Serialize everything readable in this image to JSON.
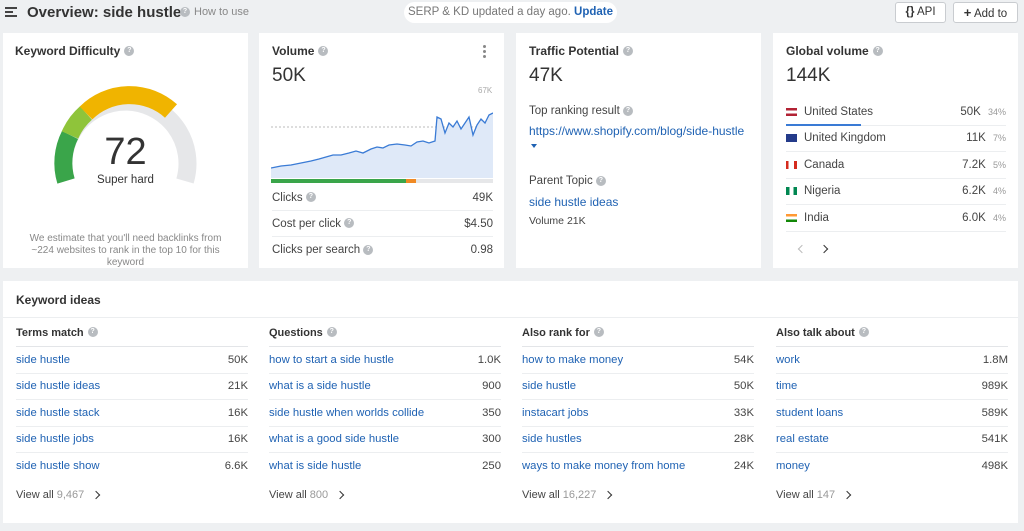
{
  "header": {
    "title": "Overview: side hustle",
    "how_to_use": "How to use",
    "status_text": "SERP & KD updated a day ago.",
    "update_label": "Update",
    "api_label": "API",
    "add_to_label": "Add to"
  },
  "kd": {
    "title": "Keyword Difficulty",
    "value": "72",
    "label": "Super hard",
    "note": "We estimate that you'll need backlinks from ~224 websites to rank in the top 10 for this keyword"
  },
  "volume": {
    "title": "Volume",
    "value": "50K",
    "chart_max_label": "67K",
    "rows": [
      {
        "label": "Clicks",
        "value": "49K"
      },
      {
        "label": "Cost per click",
        "value": "$4.50"
      },
      {
        "label": "Clicks per search",
        "value": "0.98"
      }
    ]
  },
  "traffic": {
    "title": "Traffic Potential",
    "value": "47K",
    "top_ranking_label": "Top ranking result",
    "top_ranking_url": "https://www.shopify.com/blog/side-hustle",
    "parent_topic_label": "Parent Topic",
    "parent_topic": "side hustle ideas",
    "parent_volume": "Volume 21K"
  },
  "global": {
    "title": "Global volume",
    "value": "144K",
    "countries": [
      {
        "name": "United States",
        "volume": "50K",
        "pct": "34%"
      },
      {
        "name": "United Kingdom",
        "volume": "11K",
        "pct": "7%"
      },
      {
        "name": "Canada",
        "volume": "7.2K",
        "pct": "5%"
      },
      {
        "name": "Nigeria",
        "volume": "6.2K",
        "pct": "4%"
      },
      {
        "name": "India",
        "volume": "6.0K",
        "pct": "4%"
      }
    ]
  },
  "ideas": {
    "title": "Keyword ideas",
    "columns": [
      {
        "header": "Terms match",
        "rows": [
          {
            "kw": "side hustle",
            "v": "50K"
          },
          {
            "kw": "side hustle ideas",
            "v": "21K"
          },
          {
            "kw": "side hustle stack",
            "v": "16K"
          },
          {
            "kw": "side hustle jobs",
            "v": "16K"
          },
          {
            "kw": "side hustle show",
            "v": "6.6K"
          }
        ],
        "view_all": "View all",
        "count": "9,467"
      },
      {
        "header": "Questions",
        "rows": [
          {
            "kw": "how to start a side hustle",
            "v": "1.0K"
          },
          {
            "kw": "what is a side hustle",
            "v": "900"
          },
          {
            "kw": "side hustle when worlds collide",
            "v": "350"
          },
          {
            "kw": "what is a good side hustle",
            "v": "300"
          },
          {
            "kw": "what is side hustle",
            "v": "250"
          }
        ],
        "view_all": "View all",
        "count": "800"
      },
      {
        "header": "Also rank for",
        "rows": [
          {
            "kw": "how to make money",
            "v": "54K"
          },
          {
            "kw": "side hustle",
            "v": "50K"
          },
          {
            "kw": "instacart jobs",
            "v": "33K"
          },
          {
            "kw": "side hustles",
            "v": "28K"
          },
          {
            "kw": "ways to make money from home",
            "v": "24K"
          }
        ],
        "view_all": "View all",
        "count": "16,227"
      },
      {
        "header": "Also talk about",
        "rows": [
          {
            "kw": "work",
            "v": "1.8M"
          },
          {
            "kw": "time",
            "v": "989K"
          },
          {
            "kw": "student loans",
            "v": "589K"
          },
          {
            "kw": "real estate",
            "v": "541K"
          },
          {
            "kw": "money",
            "v": "498K"
          }
        ],
        "view_all": "View all",
        "count": "147"
      }
    ]
  },
  "colors": {
    "link": "#1f62b3",
    "kd_gauge": "#f0b400",
    "clicks_bar": "#3aa54a",
    "paid_bar": "#f08a24"
  },
  "icons": {
    "menu": "menu-icon",
    "help": "help-icon",
    "api": "code-braces-icon",
    "add": "plus-icon",
    "more": "more-vertical-icon",
    "caret": "caret-down-icon",
    "prev": "chevron-left-icon",
    "next": "chevron-right-icon"
  }
}
